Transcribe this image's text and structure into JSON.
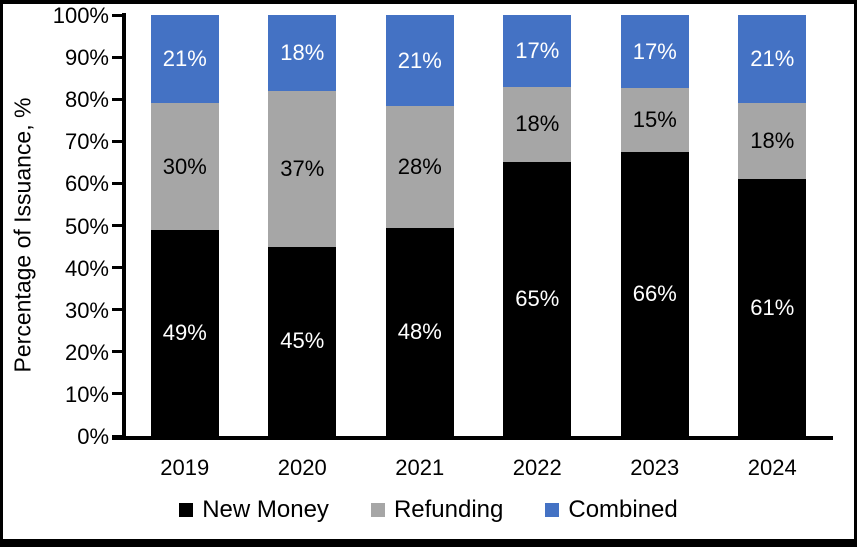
{
  "chart_data": {
    "type": "bar",
    "stacked": true,
    "title": "",
    "ylabel": "Percentage of Issuance, %",
    "xlabel": "",
    "categories": [
      "2019",
      "2020",
      "2021",
      "2022",
      "2023",
      "2024"
    ],
    "series": [
      {
        "name": "New Money",
        "color": "#000000",
        "label_color": "#ffffff",
        "values": [
          49,
          45,
          48,
          65,
          66,
          61
        ]
      },
      {
        "name": "Refunding",
        "color": "#A6A6A6",
        "label_color": "#000000",
        "values": [
          30,
          37,
          28,
          18,
          15,
          18
        ]
      },
      {
        "name": "Combined",
        "color": "#4472C4",
        "label_color": "#ffffff",
        "values": [
          21,
          18,
          21,
          17,
          17,
          21
        ]
      }
    ],
    "y_ticks": [
      "100%",
      "90%",
      "80%",
      "70%",
      "60%",
      "50%",
      "40%",
      "30%",
      "20%",
      "10%",
      "0%"
    ],
    "ylim": [
      0,
      100
    ],
    "grid": false,
    "legend_position": "bottom",
    "axis_color": "#000000",
    "frame_color": "#000000",
    "background_color": "#ffffff"
  }
}
